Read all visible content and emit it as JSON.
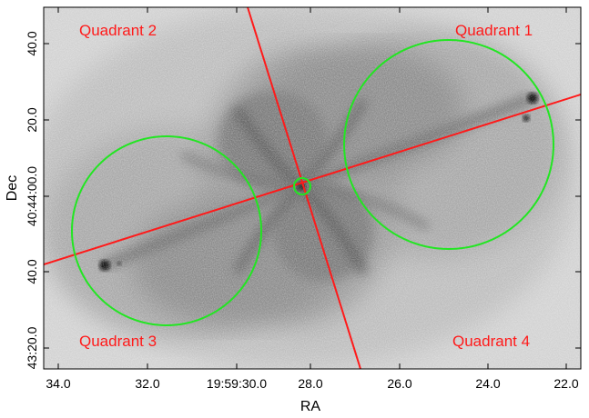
{
  "colors": {
    "overlay_line": "#ff1a1a",
    "region_circle": "#22e622",
    "quadrant_text": "#ff1a1a",
    "background_field": "#cfcfcf",
    "nebula_dark": "#2a2a2a"
  },
  "axes": {
    "x_title": "RA",
    "y_title": "Dec",
    "x_ticks": [
      "34.0",
      "32.0",
      "19:59:30.0",
      "28.0",
      "26.0",
      "24.0",
      "22.0"
    ],
    "y_ticks": [
      "40.0",
      "20.0",
      "40:44:00.0",
      "40.0",
      "43:20.0"
    ]
  },
  "quadrants": {
    "q1": "Quadrant 1",
    "q2": "Quadrant 2",
    "q3": "Quadrant 3",
    "q4": "Quadrant 4"
  },
  "overlays": {
    "circle_icon": "circle-region-icon",
    "line_icon": "axis-line-icon"
  }
}
